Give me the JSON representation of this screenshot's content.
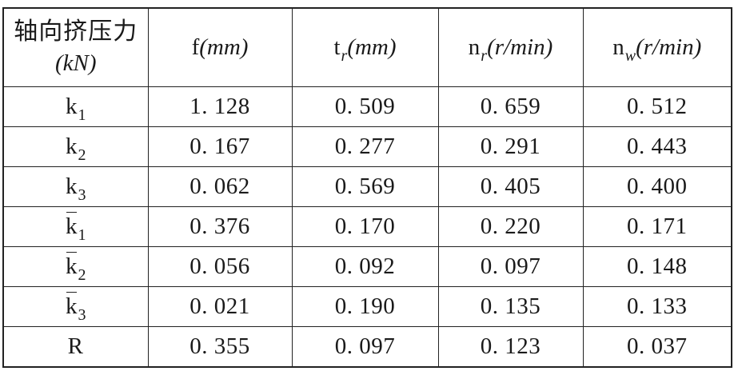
{
  "table": {
    "row_header": {
      "line1": "轴向挤压力",
      "line2": "(kN)"
    },
    "columns": [
      {
        "base": "f",
        "subscript": "",
        "unit": "(mm)"
      },
      {
        "base": "t",
        "subscript": "r",
        "unit": "(mm)"
      },
      {
        "base": "n",
        "subscript": "r",
        "unit": "(r/min)"
      },
      {
        "base": "n",
        "subscript": "w",
        "unit": "(r/min)"
      }
    ],
    "rows": [
      {
        "base": "k",
        "subscript": "1",
        "overline": false,
        "cells": [
          "1. 128",
          "0. 509",
          "0. 659",
          "0. 512"
        ]
      },
      {
        "base": "k",
        "subscript": "2",
        "overline": false,
        "cells": [
          "0. 167",
          "0. 277",
          "0. 291",
          "0. 443"
        ]
      },
      {
        "base": "k",
        "subscript": "3",
        "overline": false,
        "cells": [
          "0. 062",
          "0. 569",
          "0. 405",
          "0. 400"
        ]
      },
      {
        "base": "k",
        "subscript": "1",
        "overline": true,
        "cells": [
          "0. 376",
          "0. 170",
          "0. 220",
          "0. 171"
        ]
      },
      {
        "base": "k",
        "subscript": "2",
        "overline": true,
        "cells": [
          "0. 056",
          "0. 092",
          "0. 097",
          "0. 148"
        ]
      },
      {
        "base": "k",
        "subscript": "3",
        "overline": true,
        "cells": [
          "0. 021",
          "0. 190",
          "0. 135",
          "0. 133"
        ]
      },
      {
        "base": "R",
        "subscript": "",
        "overline": false,
        "cells": [
          "0. 355",
          "0. 097",
          "0. 123",
          "0. 037"
        ]
      }
    ]
  }
}
